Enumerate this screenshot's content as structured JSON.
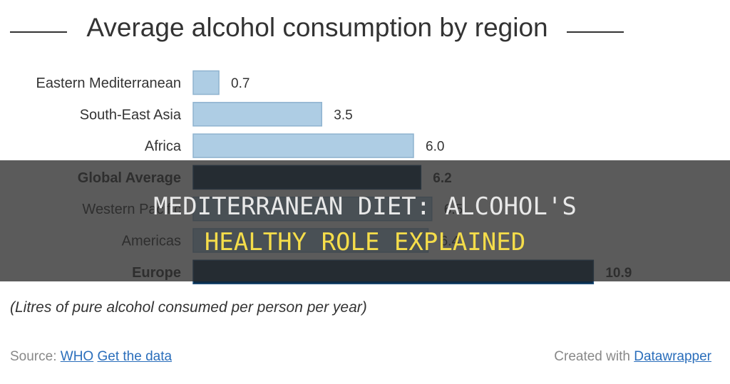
{
  "chart_data": {
    "type": "bar",
    "orientation": "horizontal",
    "title": "Average alcohol consumption by region",
    "categories": [
      "Eastern Mediterranean",
      "South-East Asia",
      "Africa",
      "Global Average",
      "Western Pacific",
      "Americas",
      "Europe"
    ],
    "values": [
      0.7,
      3.5,
      6.0,
      6.2,
      6.5,
      6.4,
      10.9
    ],
    "value_labels": [
      "0.7",
      "3.5",
      "6.0",
      "6.2",
      "6.5",
      "6.4",
      "10.9"
    ],
    "highlighted": [
      false,
      false,
      false,
      true,
      false,
      false,
      true
    ],
    "colors": {
      "normal": "#aecde4",
      "normal_stroke": "#8fb3cf",
      "highlight": "#0d2a44",
      "highlight_stroke": "#1f4f7a"
    },
    "xlim": [
      0,
      11
    ],
    "legend": "none",
    "grid": false,
    "footnote": "(Litres of pure alcohol consumed per person per year)"
  },
  "footer": {
    "source_prefix": "Source:",
    "source_link": "WHO",
    "data_link": "Get the data",
    "credit_prefix": "Created with",
    "credit_link": "Datawrapper"
  },
  "overlay": {
    "line1": "MEDITERRANEAN DIET: ALCOHOL'S",
    "line2": "HEALTHY ROLE EXPLAINED"
  }
}
